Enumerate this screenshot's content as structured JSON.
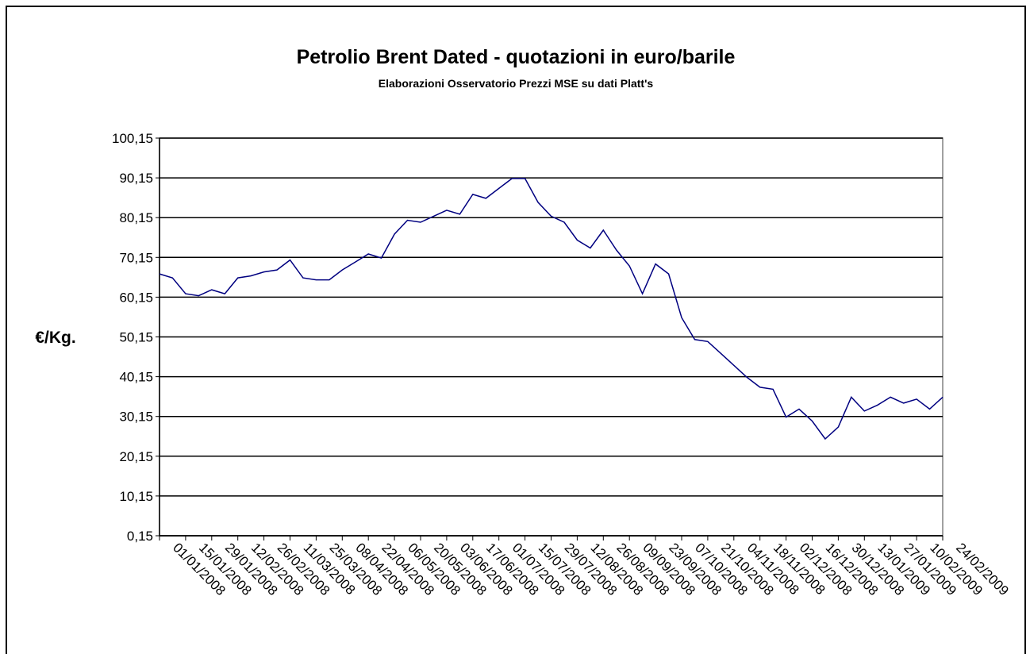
{
  "chart_data": {
    "type": "line",
    "title": "Petrolio Brent Dated - quotazioni in euro/barile",
    "subtitle": "Elaborazioni Osservatorio Prezzi MSE su dati Platt's",
    "y_label": "€/Kg.",
    "x": [
      "01/01/2008",
      "08/01/2008",
      "15/01/2008",
      "22/01/2008",
      "29/01/2008",
      "05/02/2008",
      "12/02/2008",
      "19/02/2008",
      "26/02/2008",
      "04/03/2008",
      "11/03/2008",
      "18/03/2008",
      "25/03/2008",
      "01/04/2008",
      "08/04/2008",
      "15/04/2008",
      "22/04/2008",
      "29/04/2008",
      "06/05/2008",
      "13/05/2008",
      "20/05/2008",
      "27/05/2008",
      "03/06/2008",
      "10/06/2008",
      "17/06/2008",
      "24/06/2008",
      "01/07/2008",
      "08/07/2008",
      "15/07/2008",
      "22/07/2008",
      "29/07/2008",
      "05/08/2008",
      "12/08/2008",
      "19/08/2008",
      "26/08/2008",
      "02/09/2008",
      "09/09/2008",
      "16/09/2008",
      "23/09/2008",
      "30/09/2008",
      "07/10/2008",
      "14/10/2008",
      "21/10/2008",
      "28/10/2008",
      "04/11/2008",
      "11/11/2008",
      "18/11/2008",
      "25/11/2008",
      "02/12/2008",
      "09/12/2008",
      "16/12/2008",
      "23/12/2008",
      "30/12/2008",
      "06/01/2009",
      "13/01/2009",
      "20/01/2009",
      "27/01/2009",
      "03/02/2009",
      "10/02/2009",
      "17/02/2009",
      "24/02/2009"
    ],
    "series": [
      {
        "name": "Brent Dated",
        "color": "#000080",
        "values": [
          66,
          65,
          61,
          60.5,
          62,
          61,
          65,
          65.5,
          66.5,
          67,
          69.5,
          65,
          64.5,
          64.5,
          67,
          69,
          71,
          70,
          76,
          79.5,
          79,
          80.5,
          82,
          81,
          86,
          85,
          87.5,
          90,
          90,
          84,
          80.5,
          79,
          74.5,
          72.5,
          77,
          72,
          68,
          61,
          68.5,
          66,
          55,
          49.5,
          49,
          46,
          43,
          40,
          37.5,
          37,
          30,
          32,
          29,
          24.5,
          27.5,
          35,
          31.5,
          33,
          35,
          33.5,
          34.5,
          32,
          35
        ]
      }
    ],
    "xlim": [
      "01/01/2008",
      "24/02/2009"
    ],
    "xticks": [
      "01/01/2008",
      "15/01/2008",
      "29/01/2008",
      "12/02/2008",
      "26/02/2008",
      "11/03/2008",
      "25/03/2008",
      "08/04/2008",
      "22/04/2008",
      "06/05/2008",
      "20/05/2008",
      "03/06/2008",
      "17/06/2008",
      "01/07/2008",
      "15/07/2008",
      "29/07/2008",
      "12/08/2008",
      "26/08/2008",
      "09/09/2008",
      "23/09/2008",
      "07/10/2008",
      "21/10/2008",
      "04/11/2008",
      "18/11/2008",
      "02/12/2008",
      "16/12/2008",
      "30/12/2008",
      "13/01/2009",
      "27/01/2009",
      "10/02/2009",
      "24/02/2009"
    ],
    "ylim": [
      0.15,
      100.15
    ],
    "yticks": [
      {
        "value": 0.15,
        "label": "0,15"
      },
      {
        "value": 10.15,
        "label": "10,15"
      },
      {
        "value": 20.15,
        "label": "20,15"
      },
      {
        "value": 30.15,
        "label": "30,15"
      },
      {
        "value": 40.15,
        "label": "40,15"
      },
      {
        "value": 50.15,
        "label": "50,15"
      },
      {
        "value": 60.15,
        "label": "60,15"
      },
      {
        "value": 70.15,
        "label": "70,15"
      },
      {
        "value": 80.15,
        "label": "80,15"
      },
      {
        "value": 90.15,
        "label": "90,15"
      },
      {
        "value": 100.15,
        "label": "100,15"
      }
    ],
    "grid": true
  }
}
